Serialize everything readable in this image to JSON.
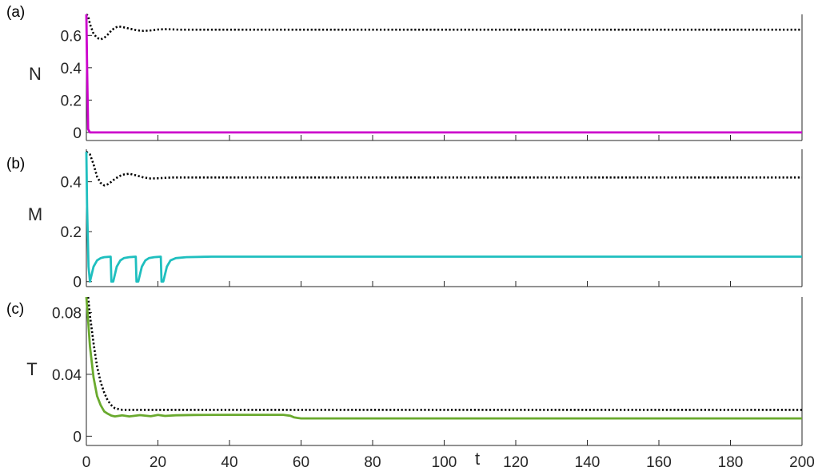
{
  "chart_data": [
    {
      "type": "line",
      "panel_label": "(a)",
      "ylabel": "N",
      "xlim": [
        0,
        200
      ],
      "ylim": [
        -0.05,
        0.73
      ],
      "yticks": [
        0,
        0.2,
        0.4,
        0.6
      ],
      "ytick_labels": [
        "0",
        "0.2",
        "0.4",
        "0.6"
      ],
      "xticks": [
        0,
        20,
        40,
        60,
        80,
        100,
        120,
        140,
        160,
        180,
        200
      ],
      "show_xtick_labels": false,
      "grid": false,
      "series": [
        {
          "style": "dotted",
          "color": "#000000",
          "x": [
            0,
            0.5,
            1,
            2,
            3,
            4,
            5,
            6,
            7,
            8,
            9,
            10,
            12,
            14,
            16,
            18,
            20,
            22,
            24,
            26,
            30,
            40,
            60,
            100,
            150,
            200
          ],
          "y": [
            0.73,
            0.72,
            0.67,
            0.61,
            0.585,
            0.575,
            0.585,
            0.605,
            0.63,
            0.648,
            0.655,
            0.652,
            0.642,
            0.632,
            0.628,
            0.631,
            0.636,
            0.638,
            0.637,
            0.635,
            0.635,
            0.635,
            0.635,
            0.635,
            0.635,
            0.635
          ]
        },
        {
          "style": "solid",
          "color": "#cc00cc",
          "x": [
            0,
            0.2,
            0.5,
            1,
            200
          ],
          "y": [
            0.73,
            0.4,
            0.02,
            0,
            0
          ]
        }
      ]
    },
    {
      "type": "line",
      "panel_label": "(b)",
      "ylabel": "M",
      "xlim": [
        0,
        200
      ],
      "ylim": [
        -0.02,
        0.53
      ],
      "yticks": [
        0,
        0.2,
        0.4
      ],
      "ytick_labels": [
        "0",
        "0.2",
        "0.4"
      ],
      "xticks": [
        0,
        20,
        40,
        60,
        80,
        100,
        120,
        140,
        160,
        180,
        200
      ],
      "show_xtick_labels": false,
      "grid": false,
      "series": [
        {
          "style": "dotted",
          "color": "#000000",
          "x": [
            0,
            1,
            2,
            3,
            4,
            5,
            6,
            7,
            8,
            10,
            12,
            14,
            16,
            18,
            20,
            24,
            30,
            40,
            60,
            100,
            150,
            200
          ],
          "y": [
            0.52,
            0.51,
            0.47,
            0.42,
            0.395,
            0.385,
            0.39,
            0.4,
            0.412,
            0.428,
            0.432,
            0.425,
            0.417,
            0.413,
            0.414,
            0.417,
            0.417,
            0.417,
            0.417,
            0.417,
            0.417,
            0.417
          ]
        },
        {
          "style": "solid",
          "color": "#1fbfbf",
          "x": [
            0,
            0.2,
            0.6,
            1,
            2,
            3,
            4,
            5,
            6,
            6.8,
            7,
            7.5,
            8.5,
            9.5,
            10.5,
            12,
            13,
            13.8,
            14,
            14.5,
            15.5,
            16.5,
            17.5,
            19,
            20,
            20.8,
            21,
            21.5,
            22.5,
            23.5,
            25,
            28,
            35,
            60,
            100,
            150,
            200
          ],
          "y": [
            0.52,
            0.3,
            0.06,
            0,
            0.06,
            0.085,
            0.094,
            0.098,
            0.099,
            0.1,
            0,
            0,
            0.06,
            0.085,
            0.094,
            0.098,
            0.099,
            0.1,
            0,
            0,
            0.06,
            0.085,
            0.094,
            0.098,
            0.099,
            0.1,
            0,
            0,
            0.06,
            0.085,
            0.094,
            0.098,
            0.1,
            0.1,
            0.1,
            0.1,
            0.1
          ]
        }
      ]
    },
    {
      "type": "line",
      "panel_label": "(c)",
      "ylabel": "T",
      "xlabel": "t",
      "xlim": [
        0,
        200
      ],
      "ylim": [
        -0.006,
        0.09
      ],
      "yticks": [
        0,
        0.04,
        0.08
      ],
      "ytick_labels": [
        "0",
        "0.04",
        "0.08"
      ],
      "xticks": [
        0,
        20,
        40,
        60,
        80,
        100,
        120,
        140,
        160,
        180,
        200
      ],
      "xtick_labels": [
        "0",
        "20",
        "40",
        "60",
        "80",
        "100",
        "120",
        "140",
        "160",
        "180",
        "200"
      ],
      "show_xtick_labels": true,
      "grid": false,
      "series": [
        {
          "style": "dotted",
          "color": "#000000",
          "x": [
            0.5,
            1,
            2,
            3,
            4,
            5,
            6,
            7,
            8,
            10,
            15,
            30,
            60,
            100,
            150,
            200
          ],
          "y": [
            0.09,
            0.078,
            0.06,
            0.045,
            0.035,
            0.028,
            0.023,
            0.02,
            0.018,
            0.017,
            0.017,
            0.017,
            0.017,
            0.017,
            0.017,
            0.017
          ]
        },
        {
          "style": "solid",
          "color": "#6aaa2e",
          "x": [
            0,
            0.5,
            1,
            2,
            3,
            4,
            5,
            6,
            7,
            8,
            10,
            12,
            15,
            18,
            20,
            22,
            25,
            30,
            40,
            50,
            55,
            57,
            58,
            59,
            60,
            80,
            100,
            150,
            200
          ],
          "y": [
            0.09,
            0.075,
            0.058,
            0.038,
            0.026,
            0.02,
            0.016,
            0.0145,
            0.0133,
            0.0128,
            0.0135,
            0.0128,
            0.0136,
            0.0129,
            0.0137,
            0.0131,
            0.0135,
            0.0137,
            0.0138,
            0.0138,
            0.0138,
            0.0132,
            0.0122,
            0.0118,
            0.0115,
            0.0115,
            0.0115,
            0.0115,
            0.0115
          ]
        }
      ]
    }
  ]
}
